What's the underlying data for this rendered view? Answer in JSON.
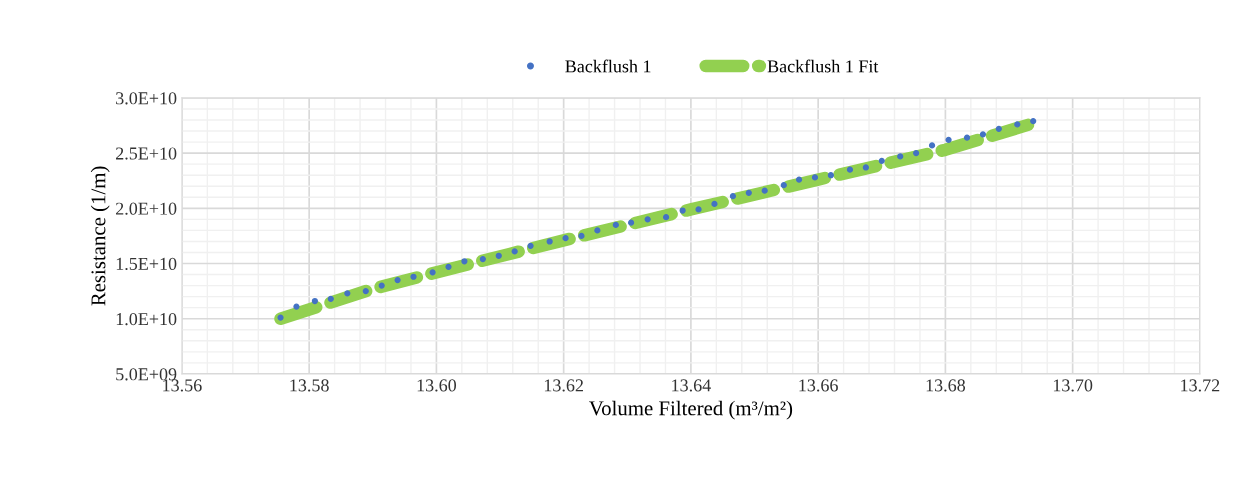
{
  "chart_data": {
    "type": "scatter",
    "xlabel": "Volume Filtered (m³/m²)",
    "ylabel": "Resistance (1/m)",
    "xlim": [
      13.56,
      13.72
    ],
    "xticks": [
      {
        "value": 13.56,
        "label": "13.56"
      },
      {
        "value": 13.58,
        "label": "13.58"
      },
      {
        "value": 13.6,
        "label": "13.60"
      },
      {
        "value": 13.62,
        "label": "13.62"
      },
      {
        "value": 13.64,
        "label": "13.64"
      },
      {
        "value": 13.66,
        "label": "13.66"
      },
      {
        "value": 13.68,
        "label": "13.68"
      },
      {
        "value": 13.7,
        "label": "13.70"
      },
      {
        "value": 13.72,
        "label": "13.72"
      }
    ],
    "ylim": [
      5000000000.0,
      30000000000.0
    ],
    "yticks": [
      {
        "value": 5000000000.0,
        "label": "5.0E+09"
      },
      {
        "value": 10000000000.0,
        "label": "1.0E+10"
      },
      {
        "value": 15000000000.0,
        "label": "1.5E+10"
      },
      {
        "value": 20000000000.0,
        "label": "2.0E+10"
      },
      {
        "value": 25000000000.0,
        "label": "2.5E+10"
      },
      {
        "value": 30000000000.0,
        "label": "3.0E+10"
      }
    ],
    "grid": true,
    "legend": "top",
    "series": [
      {
        "name": "Backflush 1",
        "marker": "circle",
        "color": "#4472c4",
        "x": [
          13.5755,
          13.578,
          13.5809,
          13.5834,
          13.586,
          13.5889,
          13.5914,
          13.5939,
          13.5964,
          13.5994,
          13.6019,
          13.6044,
          13.6073,
          13.6098,
          13.6123,
          13.6148,
          13.6178,
          13.6203,
          13.6228,
          13.6253,
          13.6282,
          13.6306,
          13.6332,
          13.6361,
          13.6387,
          13.6412,
          13.6437,
          13.6466,
          13.6491,
          13.6516,
          13.6546,
          13.657,
          13.6595,
          13.662,
          13.665,
          13.6675,
          13.67,
          13.6729,
          13.6754,
          13.6779,
          13.6805,
          13.6834,
          13.6859,
          13.6884,
          13.6913,
          13.6938
        ],
        "values": [
          10100000000.0,
          11100000000.0,
          11600000000.0,
          11800000000.0,
          12300000000.0,
          12500000000.0,
          13000000000.0,
          13500000000.0,
          13800000000.0,
          14200000000.0,
          14700000000.0,
          15200000000.0,
          15400000000.0,
          15700000000.0,
          16100000000.0,
          16600000000.0,
          17000000000.0,
          17300000000.0,
          17500000000.0,
          18000000000.0,
          18500000000.0,
          18700000000.0,
          19000000000.0,
          19200000000.0,
          19800000000.0,
          19900000000.0,
          20400000000.0,
          21100000000.0,
          21400000000.0,
          21600000000.0,
          22100000000.0,
          22600000000.0,
          22800000000.0,
          23000000000.0,
          23500000000.0,
          23700000000.0,
          24300000000.0,
          24700000000.0,
          25000000000.0,
          25700000000.0,
          26200000000.0,
          26400000000.0,
          26700000000.0,
          27200000000.0,
          27600000000.0,
          27900000000.0
        ]
      },
      {
        "name": "Backflush 1 Fit",
        "type": "line",
        "line_style": "dashed",
        "color": "#92d050",
        "x": [
          13.5755,
          13.59,
          13.6,
          13.62,
          13.64,
          13.66,
          13.68,
          13.6938
        ],
        "values": [
          10000000000.0,
          12700000000.0,
          14200000000.0,
          17100000000.0,
          19900000000.0,
          22600000000.0,
          25300000000.0,
          27700000000.0
        ]
      }
    ]
  }
}
